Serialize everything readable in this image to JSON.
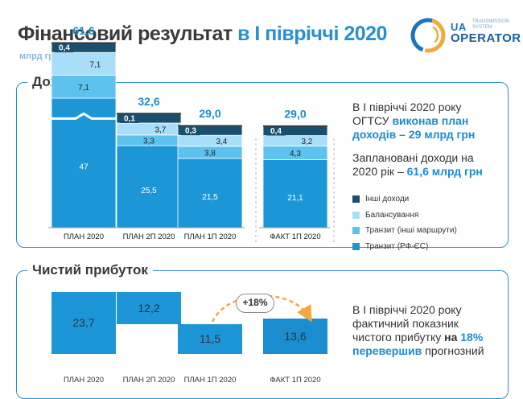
{
  "header": {
    "title_part1": "Фінансовий результат",
    "title_part2": "в І півріччі 2020",
    "unit": "млрд грн"
  },
  "logo": {
    "ua": "UA",
    "sub_line1": "TRANSMISSION",
    "sub_line2": "SYSTEM",
    "operator": "OPERATOR"
  },
  "colors": {
    "accent": "#2a8fd0",
    "dark": "#1a4f6e",
    "transit_rfes": "#1d96d8",
    "transit_other": "#5ec2ef",
    "balancing": "#a9defa",
    "other_income": "#1a4f6e"
  },
  "income": {
    "panel_title": "Дохід",
    "text1": {
      "line1": "В І півріччі 2020 року",
      "line2_plain": "ОГТСУ ",
      "line2_hl": "виконав план",
      "line3_hl": "доходів – 29 млрд грн"
    },
    "text2": {
      "line1": "Заплановані доходи на",
      "line2_plain": "2020 рік – ",
      "line2_hl": "61,6 млрд грн"
    }
  },
  "profit": {
    "panel_title": "Чистий прибуток",
    "text": {
      "line1": "В І півріччі 2020 року",
      "line2": "фактичний показник",
      "line3_plain": "чистого прибутку ",
      "line3_b": "на ",
      "line3_hl": "18%",
      "line4_hl": "перевершив",
      "line4_plain": " прогнозний"
    },
    "growth_label": "+18%"
  },
  "chart_data": [
    {
      "type": "bar",
      "stacked": true,
      "title": "Дохід",
      "categories": [
        "ПЛАН 2020",
        "ПЛАН 2П 2020",
        "ПЛАН 1П 2020",
        "ФАКТ 1П 2020"
      ],
      "series": [
        {
          "name": "Транзит (РФ-ЄС)",
          "color": "#1d96d8",
          "values": [
            47,
            25.5,
            21.5,
            21.1
          ],
          "labels": [
            "47",
            "25,5",
            "21,5",
            "21,1"
          ]
        },
        {
          "name": "Транзит (інші маршрути)",
          "color": "#5ec2ef",
          "values": [
            7.1,
            3.3,
            3.8,
            4.3
          ],
          "labels": [
            "7,1",
            "3,3",
            "3,8",
            "4,3"
          ]
        },
        {
          "name": "Балансування",
          "color": "#a9defa",
          "values": [
            7.1,
            3.7,
            3.4,
            3.2
          ],
          "labels": [
            "7,1",
            "3,7",
            "3,4",
            "3,2"
          ]
        },
        {
          "name": "Інші доходи",
          "color": "#1a4f6e",
          "values": [
            0.4,
            0.1,
            0.3,
            0.4
          ],
          "labels": [
            "0,4",
            "0,1",
            "0,3",
            "0,4"
          ]
        }
      ],
      "totals": [
        "61,6",
        "32,6",
        "29,0",
        "29,0"
      ],
      "axis_break": "ПЛАН 2020",
      "legend_order": [
        "Інші доходи",
        "Балансування",
        "Транзит (інші маршрути)",
        "Транзит (РФ-ЄС)"
      ]
    },
    {
      "type": "bar",
      "title": "Чистий прибуток",
      "waterfall": true,
      "categories": [
        "ПЛАН 2020",
        "ПЛАН 2П 2020",
        "ПЛАН 1П 2020",
        "ФАКТ 1П 2020"
      ],
      "values": [
        23.7,
        12.2,
        11.5,
        13.6
      ],
      "labels": [
        "23,7",
        "12,2",
        "11,5",
        "13,6"
      ]
    }
  ]
}
